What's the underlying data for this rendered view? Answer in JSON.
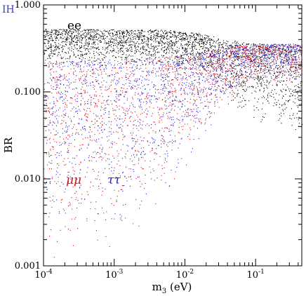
{
  "chart_data": {
    "type": "scatter",
    "corner_label": "IH",
    "corner_label_color": "#3b3bdc",
    "xlabel_main": "m",
    "xlabel_sub": "3",
    "xlabel_unit": " (eV)",
    "ylabel": "BR",
    "x_scale": "log",
    "y_scale": "log",
    "xlim": [
      0.0001,
      0.45
    ],
    "ylim": [
      0.001,
      1.0
    ],
    "x_ticks": [
      {
        "value": 0.0001,
        "base": "10",
        "exp": "-4"
      },
      {
        "value": 0.001,
        "base": "10",
        "exp": "-3"
      },
      {
        "value": 0.01,
        "base": "10",
        "exp": "-2"
      },
      {
        "value": 0.1,
        "base": "10",
        "exp": "-1"
      }
    ],
    "y_ticks": [
      {
        "value": 0.001,
        "label": "0.001"
      },
      {
        "value": 0.01,
        "label": "0.010"
      },
      {
        "value": 0.1,
        "label": "0.100"
      },
      {
        "value": 1.0,
        "label": "1.000"
      }
    ],
    "series": [
      {
        "name": "ee",
        "color": "#000000",
        "upper_envelope": [
          [
            0.0001,
            0.53
          ],
          [
            0.005,
            0.52
          ],
          [
            0.015,
            0.48
          ],
          [
            0.04,
            0.4
          ],
          [
            0.1,
            0.36
          ],
          [
            0.45,
            0.35
          ]
        ],
        "lower_envelope": [
          [
            0.0001,
            0.2
          ],
          [
            0.005,
            0.2
          ],
          [
            0.02,
            0.16
          ],
          [
            0.05,
            0.06
          ],
          [
            0.1,
            0.04
          ],
          [
            0.45,
            0.035
          ]
        ]
      },
      {
        "name": "μμ",
        "color": "#e01010",
        "upper_envelope": [
          [
            0.0001,
            0.22
          ],
          [
            0.005,
            0.25
          ],
          [
            0.02,
            0.29
          ],
          [
            0.06,
            0.34
          ],
          [
            0.45,
            0.35
          ]
        ],
        "lower_envelope": [
          [
            0.0001,
            0.0012
          ],
          [
            0.001,
            0.0015
          ],
          [
            0.005,
            0.005
          ],
          [
            0.02,
            0.03
          ],
          [
            0.06,
            0.1
          ],
          [
            0.45,
            0.13
          ]
        ]
      },
      {
        "name": "ττ",
        "color": "#2020e0",
        "upper_envelope": [
          [
            0.0001,
            0.22
          ],
          [
            0.005,
            0.25
          ],
          [
            0.02,
            0.29
          ],
          [
            0.06,
            0.36
          ],
          [
            0.45,
            0.36
          ]
        ],
        "lower_envelope": [
          [
            0.0001,
            0.0012
          ],
          [
            0.001,
            0.0015
          ],
          [
            0.005,
            0.005
          ],
          [
            0.02,
            0.03
          ],
          [
            0.06,
            0.1
          ],
          [
            0.45,
            0.13
          ]
        ]
      }
    ],
    "series_label_colors": {
      "ee": "#000000",
      "μμ": "#e01010",
      "ττ": "#2020e0"
    },
    "grid": false,
    "legend": "inline labels"
  }
}
